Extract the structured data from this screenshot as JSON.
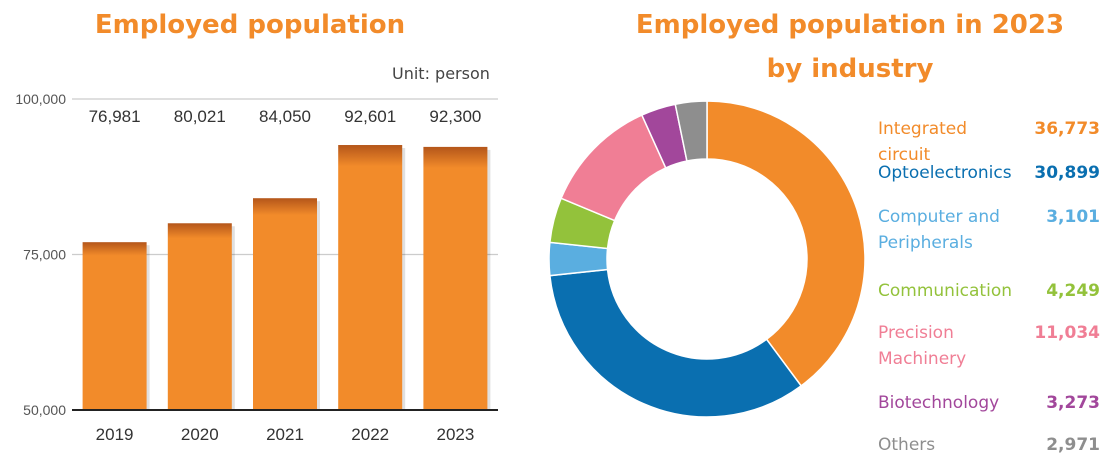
{
  "bar_title": "Employed population",
  "donut_title_line1": "Employed population in 2023",
  "donut_title_line2": "by industry",
  "unit_label": "Unit: person",
  "colors": {
    "accent_orange": "#F28B2A",
    "axis_gray": "#555555",
    "grid_gray": "#CCCCCC"
  },
  "chart_data": [
    {
      "type": "bar",
      "title": "Employed population",
      "categories": [
        "2019",
        "2020",
        "2021",
        "2022",
        "2023"
      ],
      "values": [
        76981,
        80021,
        84050,
        92601,
        92300
      ],
      "value_labels": [
        "76,981",
        "80,021",
        "84,050",
        "92,601",
        "92,300"
      ],
      "ylim": [
        50000,
        100000
      ],
      "ytick_values": [
        50000,
        75000,
        100000
      ],
      "yticks": [
        "50,000",
        "75,000",
        "100,000"
      ],
      "ylabel": "Unit: person",
      "grid": true,
      "color": "#F28B2A"
    },
    {
      "type": "pie",
      "title": "Employed population in 2023 by industry",
      "legend_placement": "right",
      "slices": [
        {
          "label": "Integrated circuit",
          "value": 36773,
          "value_label": "36,773",
          "color": "#F28B2A"
        },
        {
          "label": "Optoelectronics",
          "value": 30899,
          "value_label": "30,899",
          "color": "#0A6FB0"
        },
        {
          "label": "Computer and Peripherals",
          "value": 3101,
          "value_label": "3,101",
          "color": "#5AAEE0"
        },
        {
          "label": "Communication",
          "value": 4249,
          "value_label": "4,249",
          "color": "#93C23B"
        },
        {
          "label": "Precision Machinery",
          "value": 11034,
          "value_label": "11,034",
          "color": "#F07E95"
        },
        {
          "label": "Biotechnology",
          "value": 3273,
          "value_label": "3,273",
          "color": "#A2479B"
        },
        {
          "label": "Others",
          "value": 2971,
          "value_label": "2,971",
          "color": "#8E8E8E"
        }
      ]
    }
  ]
}
